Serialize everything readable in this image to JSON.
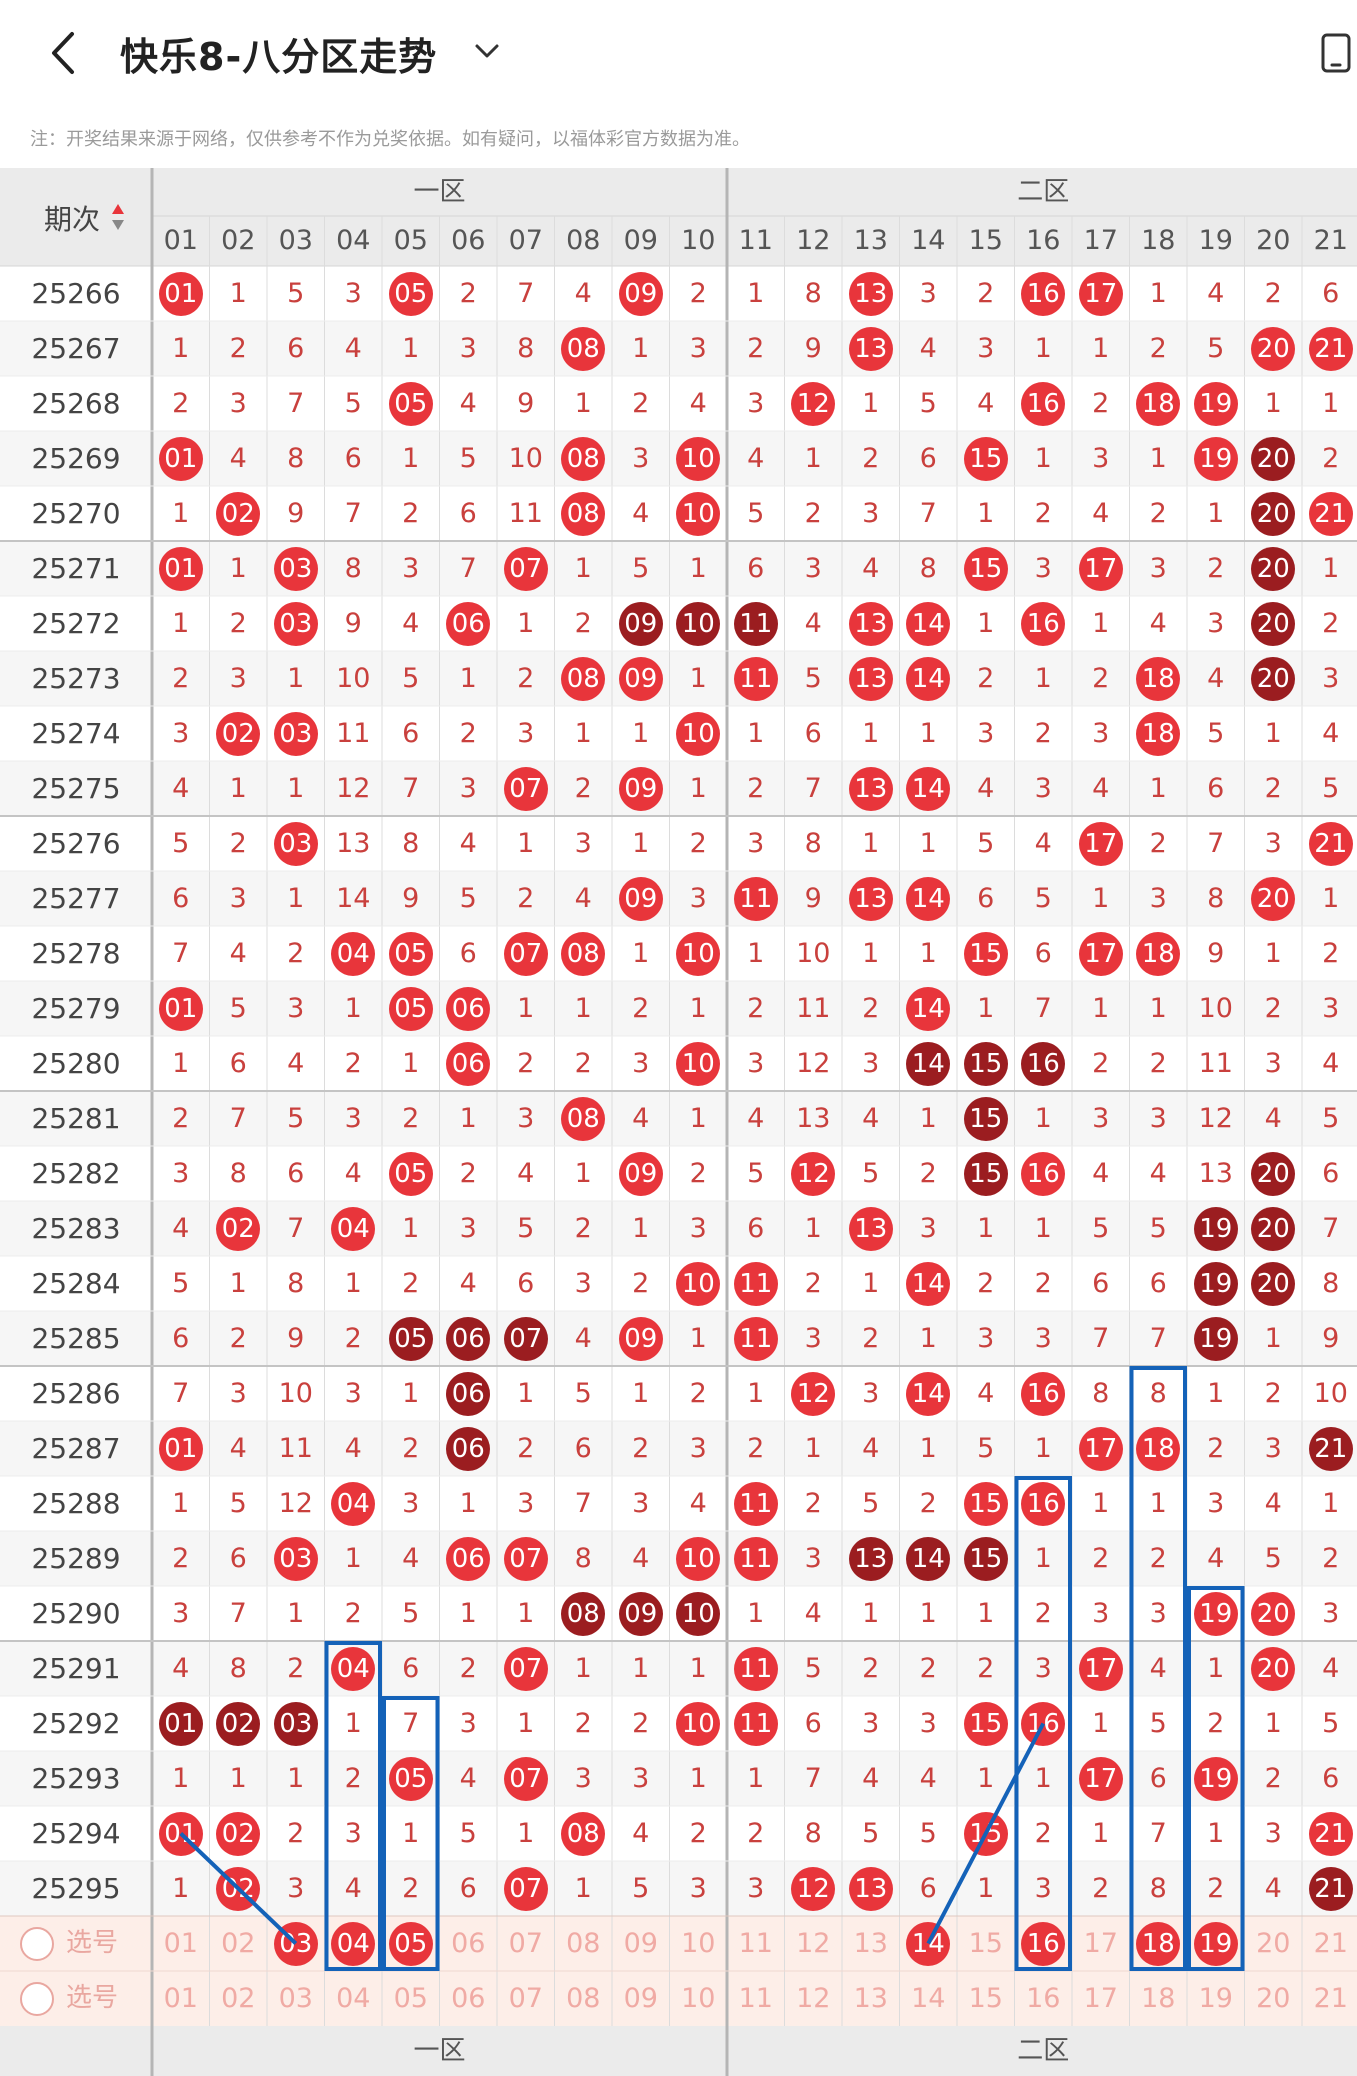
{
  "header": {
    "title": "快乐8-八分区走势",
    "back_icon": "chevron-left-icon",
    "dropdown_icon": "chevron-down-icon",
    "device_icon": "phone-rotate-icon"
  },
  "notice": "注：开奖结果来源于网络，仅供参考不作为兑奖依据。如有疑问，以福体彩官方数据为准。",
  "table": {
    "issue_header": "期次",
    "sort_icon": "sort-updown-icon",
    "zones": [
      {
        "label": "一区",
        "first_col": 0,
        "col_count": 10
      },
      {
        "label": "二区",
        "first_col": 10,
        "col_count": 11
      }
    ],
    "columns": [
      "01",
      "02",
      "03",
      "04",
      "05",
      "06",
      "07",
      "08",
      "09",
      "10",
      "11",
      "12",
      "13",
      "14",
      "15",
      "16",
      "17",
      "18",
      "19",
      "20",
      "21"
    ],
    "rows": [
      {
        "issue": "25266",
        "cells": [
          "h",
          "1",
          "5",
          "3",
          "h",
          "2",
          "7",
          "4",
          "h",
          "2",
          "1",
          "8",
          "h",
          "3",
          "2",
          "h",
          "h",
          "1",
          "4",
          "2",
          "6"
        ]
      },
      {
        "issue": "25267",
        "cells": [
          "1",
          "2",
          "6",
          "4",
          "1",
          "3",
          "8",
          "h",
          "1",
          "3",
          "2",
          "9",
          "h",
          "4",
          "3",
          "1",
          "1",
          "2",
          "5",
          "h",
          "h"
        ]
      },
      {
        "issue": "25268",
        "cells": [
          "2",
          "3",
          "7",
          "5",
          "h",
          "4",
          "9",
          "1",
          "2",
          "4",
          "3",
          "h",
          "1",
          "5",
          "4",
          "h",
          "2",
          "h",
          "h",
          "1",
          "1"
        ]
      },
      {
        "issue": "25269",
        "cells": [
          "h",
          "4",
          "8",
          "6",
          "1",
          "5",
          "10",
          "h",
          "3",
          "h",
          "4",
          "1",
          "2",
          "6",
          "h",
          "1",
          "3",
          "1",
          "h",
          "d",
          "2"
        ]
      },
      {
        "issue": "25270",
        "cells": [
          "1",
          "h",
          "9",
          "7",
          "2",
          "6",
          "11",
          "h",
          "4",
          "h",
          "5",
          "2",
          "3",
          "7",
          "1",
          "2",
          "4",
          "2",
          "1",
          "d",
          "h"
        ]
      },
      {
        "issue": "25271",
        "cells": [
          "h",
          "1",
          "h",
          "8",
          "3",
          "7",
          "h",
          "1",
          "5",
          "1",
          "6",
          "3",
          "4",
          "8",
          "h",
          "3",
          "h",
          "3",
          "2",
          "d",
          "1"
        ]
      },
      {
        "issue": "25272",
        "cells": [
          "1",
          "2",
          "h",
          "9",
          "4",
          "h",
          "1",
          "2",
          "d",
          "d",
          "d",
          "4",
          "h",
          "h",
          "1",
          "h",
          "1",
          "4",
          "3",
          "d",
          "2"
        ]
      },
      {
        "issue": "25273",
        "cells": [
          "2",
          "3",
          "1",
          "10",
          "5",
          "1",
          "2",
          "h",
          "h",
          "1",
          "h",
          "5",
          "h",
          "h",
          "2",
          "1",
          "2",
          "h",
          "4",
          "d",
          "3"
        ]
      },
      {
        "issue": "25274",
        "cells": [
          "3",
          "h",
          "h",
          "11",
          "6",
          "2",
          "3",
          "1",
          "1",
          "h",
          "1",
          "6",
          "1",
          "1",
          "3",
          "2",
          "3",
          "h",
          "5",
          "1",
          "4"
        ]
      },
      {
        "issue": "25275",
        "cells": [
          "4",
          "1",
          "1",
          "12",
          "7",
          "3",
          "h",
          "2",
          "h",
          "1",
          "2",
          "7",
          "h",
          "h",
          "4",
          "3",
          "4",
          "1",
          "6",
          "2",
          "5"
        ]
      },
      {
        "issue": "25276",
        "cells": [
          "5",
          "2",
          "h",
          "13",
          "8",
          "4",
          "1",
          "3",
          "1",
          "2",
          "3",
          "8",
          "1",
          "1",
          "5",
          "4",
          "h",
          "2",
          "7",
          "3",
          "h"
        ]
      },
      {
        "issue": "25277",
        "cells": [
          "6",
          "3",
          "1",
          "14",
          "9",
          "5",
          "2",
          "4",
          "h",
          "3",
          "h",
          "9",
          "h",
          "h",
          "6",
          "5",
          "1",
          "3",
          "8",
          "h",
          "1"
        ]
      },
      {
        "issue": "25278",
        "cells": [
          "7",
          "4",
          "2",
          "h",
          "h",
          "6",
          "h",
          "h",
          "1",
          "h",
          "1",
          "10",
          "1",
          "1",
          "h",
          "6",
          "h",
          "h",
          "9",
          "1",
          "2"
        ]
      },
      {
        "issue": "25279",
        "cells": [
          "h",
          "5",
          "3",
          "1",
          "h",
          "h",
          "1",
          "1",
          "2",
          "1",
          "2",
          "11",
          "2",
          "h",
          "1",
          "7",
          "1",
          "1",
          "10",
          "2",
          "3"
        ]
      },
      {
        "issue": "25280",
        "cells": [
          "1",
          "6",
          "4",
          "2",
          "1",
          "h",
          "2",
          "2",
          "3",
          "h",
          "3",
          "12",
          "3",
          "d",
          "d",
          "d",
          "2",
          "2",
          "11",
          "3",
          "4"
        ]
      },
      {
        "issue": "25281",
        "cells": [
          "2",
          "7",
          "5",
          "3",
          "2",
          "1",
          "3",
          "h",
          "4",
          "1",
          "4",
          "13",
          "4",
          "1",
          "d",
          "1",
          "3",
          "3",
          "12",
          "4",
          "5"
        ]
      },
      {
        "issue": "25282",
        "cells": [
          "3",
          "8",
          "6",
          "4",
          "h",
          "2",
          "4",
          "1",
          "h",
          "2",
          "5",
          "h",
          "5",
          "2",
          "d",
          "h",
          "4",
          "4",
          "13",
          "d",
          "6"
        ]
      },
      {
        "issue": "25283",
        "cells": [
          "4",
          "h",
          "7",
          "h",
          "1",
          "3",
          "5",
          "2",
          "1",
          "3",
          "6",
          "1",
          "h",
          "3",
          "1",
          "1",
          "5",
          "5",
          "d",
          "d",
          "7"
        ]
      },
      {
        "issue": "25284",
        "cells": [
          "5",
          "1",
          "8",
          "1",
          "2",
          "4",
          "6",
          "3",
          "2",
          "h",
          "h",
          "2",
          "1",
          "h",
          "2",
          "2",
          "6",
          "6",
          "d",
          "d",
          "8"
        ]
      },
      {
        "issue": "25285",
        "cells": [
          "6",
          "2",
          "9",
          "2",
          "d",
          "d",
          "d",
          "4",
          "h",
          "1",
          "h",
          "3",
          "2",
          "1",
          "3",
          "3",
          "7",
          "7",
          "d",
          "1",
          "9"
        ]
      },
      {
        "issue": "25286",
        "cells": [
          "7",
          "3",
          "10",
          "3",
          "1",
          "d",
          "1",
          "5",
          "1",
          "2",
          "1",
          "h",
          "3",
          "h",
          "4",
          "h",
          "8",
          "8",
          "1",
          "2",
          "10"
        ]
      },
      {
        "issue": "25287",
        "cells": [
          "h",
          "4",
          "11",
          "4",
          "2",
          "d",
          "2",
          "6",
          "2",
          "3",
          "2",
          "1",
          "4",
          "1",
          "5",
          "1",
          "h",
          "h",
          "2",
          "3",
          "d"
        ]
      },
      {
        "issue": "25288",
        "cells": [
          "1",
          "5",
          "12",
          "h",
          "3",
          "1",
          "3",
          "7",
          "3",
          "4",
          "h",
          "2",
          "5",
          "2",
          "h",
          "h",
          "1",
          "1",
          "3",
          "4",
          "1"
        ]
      },
      {
        "issue": "25289",
        "cells": [
          "2",
          "6",
          "h",
          "1",
          "4",
          "h",
          "h",
          "8",
          "4",
          "h",
          "h",
          "3",
          "d",
          "d",
          "d",
          "1",
          "2",
          "2",
          "4",
          "5",
          "2"
        ]
      },
      {
        "issue": "25290",
        "cells": [
          "3",
          "7",
          "1",
          "2",
          "5",
          "1",
          "1",
          "d",
          "d",
          "d",
          "1",
          "4",
          "1",
          "1",
          "1",
          "2",
          "3",
          "3",
          "h",
          "h",
          "3"
        ]
      },
      {
        "issue": "25291",
        "cells": [
          "4",
          "8",
          "2",
          "h",
          "6",
          "2",
          "h",
          "1",
          "1",
          "1",
          "h",
          "5",
          "2",
          "2",
          "2",
          "3",
          "h",
          "4",
          "1",
          "h",
          "4"
        ]
      },
      {
        "issue": "25292",
        "cells": [
          "d",
          "d",
          "d",
          "1",
          "7",
          "3",
          "1",
          "2",
          "2",
          "h",
          "h",
          "6",
          "3",
          "3",
          "h",
          "h",
          "1",
          "5",
          "2",
          "1",
          "5"
        ]
      },
      {
        "issue": "25293",
        "cells": [
          "1",
          "1",
          "1",
          "2",
          "h",
          "4",
          "h",
          "3",
          "3",
          "1",
          "1",
          "7",
          "4",
          "4",
          "1",
          "1",
          "h",
          "6",
          "h",
          "2",
          "6"
        ]
      },
      {
        "issue": "25294",
        "cells": [
          "h",
          "h",
          "2",
          "3",
          "1",
          "5",
          "1",
          "h",
          "4",
          "2",
          "2",
          "8",
          "5",
          "5",
          "h",
          "2",
          "1",
          "7",
          "1",
          "3",
          "h"
        ]
      },
      {
        "issue": "25295",
        "cells": [
          "1",
          "h",
          "3",
          "4",
          "2",
          "6",
          "h",
          "1",
          "5",
          "3",
          "3",
          "h",
          "h",
          "6",
          "1",
          "3",
          "2",
          "8",
          "2",
          "4",
          "d"
        ]
      }
    ],
    "picker_label": "选号",
    "picker_rows": [
      {
        "selected": [
          3,
          4,
          5,
          14,
          16,
          18,
          19
        ]
      },
      {
        "selected": []
      }
    ]
  },
  "colors": {
    "hit": "#e8353b",
    "hot": "#9b1d20",
    "miss_text": "#c9403d",
    "header_bg": "#ebebeb",
    "picker_bg": "#fdeee8",
    "annotation": "#1462b8"
  }
}
